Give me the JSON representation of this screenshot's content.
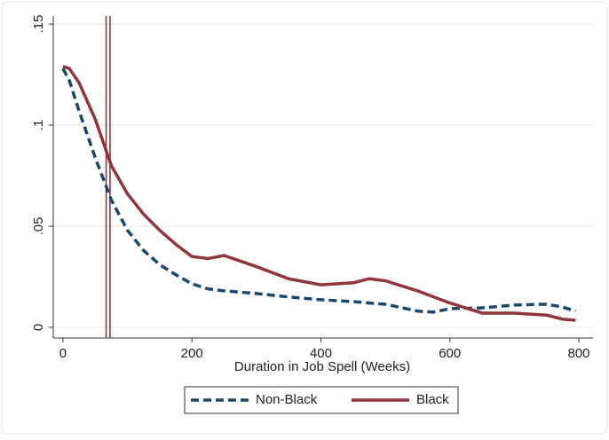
{
  "chart_data": {
    "type": "line",
    "x_label": "Duration in Job Spell (Weeks)",
    "x": [
      0,
      10,
      25,
      50,
      75,
      100,
      125,
      150,
      175,
      200,
      225,
      250,
      300,
      350,
      400,
      450,
      475,
      500,
      550,
      575,
      600,
      650,
      700,
      750,
      775,
      795
    ],
    "series": [
      {
        "name": "Non-Black",
        "color": "#1a476f",
        "dash": true,
        "values": [
          0.128,
          0.122,
          0.107,
          0.084,
          0.063,
          0.048,
          0.038,
          0.031,
          0.026,
          0.0215,
          0.019,
          0.018,
          0.0167,
          0.015,
          0.0136,
          0.0127,
          0.012,
          0.0114,
          0.008,
          0.0075,
          0.0092,
          0.0096,
          0.011,
          0.0114,
          0.01,
          0.008
        ]
      },
      {
        "name": "Black",
        "color": "#90353b",
        "dash": false,
        "values": [
          0.129,
          0.128,
          0.121,
          0.103,
          0.08,
          0.066,
          0.056,
          0.048,
          0.041,
          0.035,
          0.034,
          0.0355,
          0.03,
          0.024,
          0.021,
          0.022,
          0.024,
          0.023,
          0.018,
          0.015,
          0.012,
          0.007,
          0.007,
          0.006,
          0.004,
          0.0035
        ]
      }
    ],
    "vlines": [
      67,
      73
    ],
    "vline_color": "#90353b",
    "xlim": [
      -15,
      822
    ],
    "ylim": [
      -0.0053,
      0.154
    ],
    "xticks": [
      0,
      200,
      400,
      600,
      800
    ],
    "yticks": [
      0,
      {
        "value": 0.05,
        "label": ".05"
      },
      {
        "value": 0.1,
        "label": ".1"
      },
      {
        "value": 0.15,
        "label": ".15"
      }
    ],
    "grid": true
  }
}
